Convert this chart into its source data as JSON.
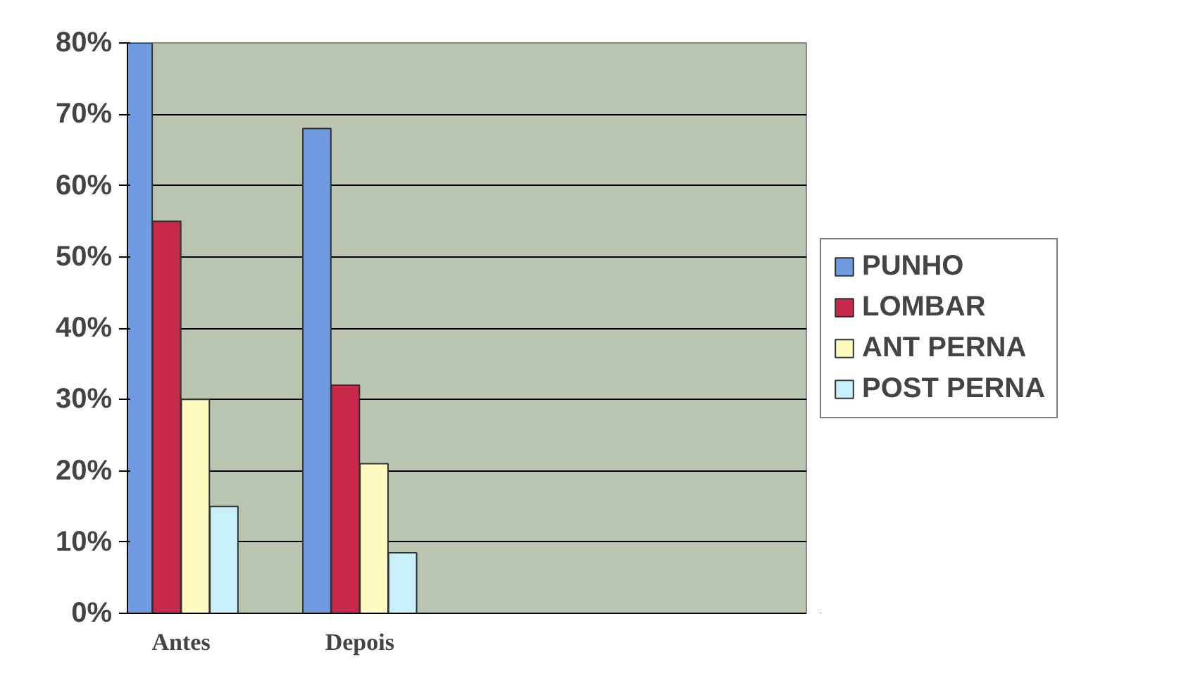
{
  "chart_data": {
    "type": "bar",
    "categories": [
      "Antes",
      "Depois"
    ],
    "series": [
      {
        "name": "PUNHO",
        "color": "#6f9be0",
        "values": [
          80,
          68
        ]
      },
      {
        "name": "LOMBAR",
        "color": "#c8284a",
        "values": [
          55,
          32
        ]
      },
      {
        "name": "ANT PERNA",
        "color": "#fdfbc0",
        "values": [
          30,
          21
        ]
      },
      {
        "name": "POST PERNA",
        "color": "#c8f0fa",
        "values": [
          15,
          8.5
        ]
      }
    ],
    "ylim": [
      0,
      80
    ],
    "yticks": [
      {
        "value": 0,
        "label": "0%"
      },
      {
        "value": 10,
        "label": "10%"
      },
      {
        "value": 20,
        "label": "20%"
      },
      {
        "value": 30,
        "label": "30%"
      },
      {
        "value": 40,
        "label": "40%"
      },
      {
        "value": 50,
        "label": "50%"
      },
      {
        "value": 60,
        "label": "60%"
      },
      {
        "value": 70,
        "label": "70%"
      },
      {
        "value": 80,
        "label": "80%"
      }
    ],
    "grid": "y",
    "legend": "right"
  }
}
